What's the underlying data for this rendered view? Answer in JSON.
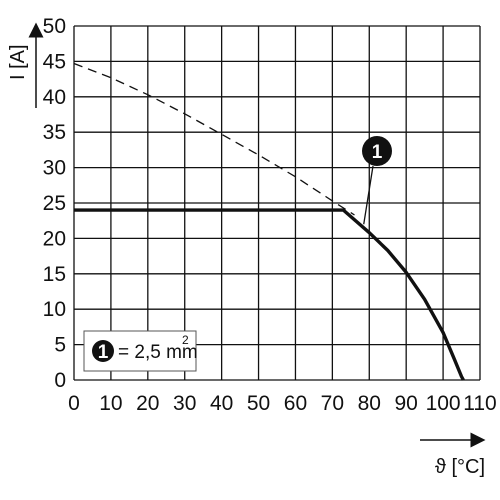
{
  "chart_data": {
    "type": "line",
    "xlabel": "ϑ [°C]",
    "ylabel": "I [A]",
    "xlim": [
      0,
      110
    ],
    "ylim": [
      0,
      50
    ],
    "x_ticks": [
      0,
      10,
      20,
      30,
      40,
      50,
      60,
      70,
      80,
      90,
      100,
      110
    ],
    "y_ticks": [
      0,
      5,
      10,
      15,
      20,
      25,
      30,
      35,
      40,
      45,
      50
    ],
    "grid": true,
    "series": [
      {
        "name": "= 2,5 mm",
        "style": "solid-thick",
        "x": [
          0,
          73,
          80,
          85,
          90,
          95,
          100,
          103,
          105,
          105.5
        ],
        "y": [
          24,
          24,
          20.8,
          18.3,
          15.2,
          11.4,
          6.7,
          3,
          0.5,
          0
        ]
      },
      {
        "style": "dashed",
        "x": [
          0,
          10,
          20,
          30,
          40,
          50,
          60,
          70,
          76
        ],
        "y": [
          44.7,
          42.7,
          40.3,
          37.6,
          34.7,
          31.8,
          28.7,
          25.3,
          23.3
        ]
      }
    ],
    "legend": {
      "marker": "1",
      "text": "= 2,5 mm",
      "superscript": "2",
      "position": "bottom-left"
    },
    "callouts": [
      {
        "label": "1",
        "points_to": [
          78.5,
          22
        ]
      }
    ]
  }
}
